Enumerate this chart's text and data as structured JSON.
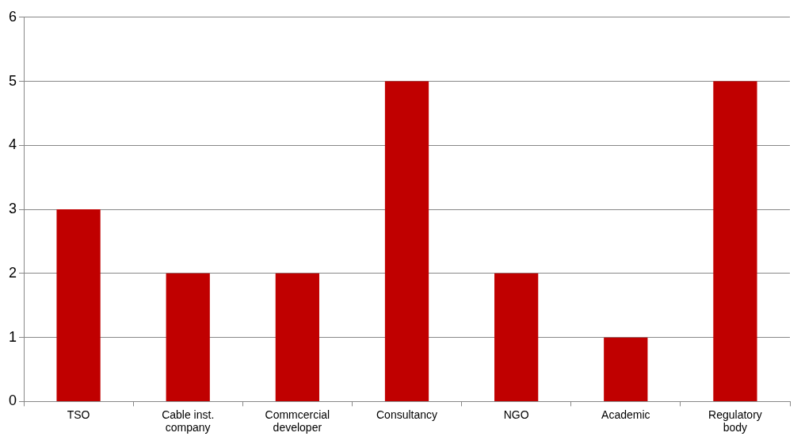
{
  "chart_data": {
    "type": "bar",
    "categories": [
      "TSO",
      "Cable inst. company",
      "Commcercial developer",
      "Consultancy",
      "NGO",
      "Academic",
      "Regulatory body"
    ],
    "values": [
      3,
      2,
      2,
      5,
      2,
      1,
      5
    ],
    "color": "#c00000",
    "ylim": [
      0,
      6
    ],
    "yticks": [
      0,
      1,
      2,
      3,
      4,
      5,
      6
    ],
    "grid": "y",
    "legend": false
  }
}
